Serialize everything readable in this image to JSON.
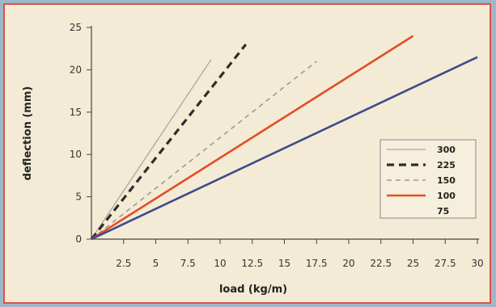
{
  "chart_data": {
    "type": "line",
    "xlabel": "load (kg/m)",
    "ylabel": "deflection (mm)",
    "xlim": [
      0,
      30
    ],
    "ylim": [
      0,
      25
    ],
    "x_ticks": [
      2.5,
      5,
      7.5,
      10,
      12.5,
      15,
      17.5,
      20,
      22.5,
      25,
      27.5,
      30
    ],
    "x_tick_labels": [
      "2.5",
      "5",
      "7.5",
      "10",
      "12.5",
      "15",
      "17.5",
      "20",
      "22.5",
      "25",
      "27.5",
      "30"
    ],
    "y_ticks": [
      0,
      5,
      10,
      15,
      20,
      25
    ],
    "y_tick_labels": [
      "0",
      "5",
      "10",
      "15",
      "20",
      "25"
    ],
    "grid": false,
    "legend_position": "right",
    "series": [
      {
        "name": "300",
        "color": "#aaa79a",
        "dash": "solid",
        "points": [
          [
            0,
            0
          ],
          [
            9.3,
            21.2
          ]
        ]
      },
      {
        "name": "225",
        "color": "#2e2e2e",
        "dash": "long-dash",
        "points": [
          [
            0,
            0
          ],
          [
            12.0,
            23.0
          ]
        ]
      },
      {
        "name": "150",
        "color": "#9a9a94",
        "dash": "dash",
        "points": [
          [
            0,
            0
          ],
          [
            17.5,
            21.0
          ]
        ]
      },
      {
        "name": "100",
        "color": "#e14f26",
        "dash": "solid",
        "points": [
          [
            0,
            0
          ],
          [
            25.0,
            24.0
          ]
        ]
      },
      {
        "name": "75",
        "color": "#3f4a8a",
        "dash": "solid",
        "points": [
          [
            0,
            0
          ],
          [
            30.0,
            21.5
          ]
        ]
      }
    ]
  }
}
